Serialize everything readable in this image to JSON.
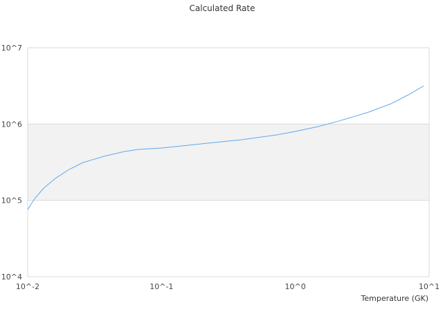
{
  "chart_data": {
    "type": "line",
    "title": "Calculated Rate",
    "xlabel": "Temperature (GK)",
    "ylabel": "",
    "x_scale": "log",
    "y_scale": "log",
    "xlim": [
      0.01,
      10
    ],
    "ylim": [
      10000,
      10000000
    ],
    "x_tick_labels": [
      "10^-2",
      "10^-1",
      "10^0",
      "10^1"
    ],
    "y_tick_labels": [
      "10^4",
      "10^5",
      "10^6",
      "10^7"
    ],
    "grid": true,
    "legend": "none",
    "colors": {
      "line": "#5ea8ee",
      "band": "#f2f2f2",
      "grid": "#d9d9d9"
    },
    "series": [
      {
        "x": [
          0.01,
          0.0113,
          0.0132,
          0.0161,
          0.0204,
          0.0259,
          0.0371,
          0.053,
          0.0673,
          0.1,
          0.221,
          0.402,
          0.728,
          1.0,
          1.48,
          2.13,
          3.43,
          5.2,
          7.0,
          9.1
        ],
        "y": [
          76000,
          106000,
          145000,
          194000,
          254000,
          313000,
          378000,
          437000,
          465000,
          485000,
          561000,
          624000,
          721000,
          800000,
          927000,
          1100000,
          1410000,
          1850000,
          2420000,
          3160000
        ]
      }
    ]
  }
}
